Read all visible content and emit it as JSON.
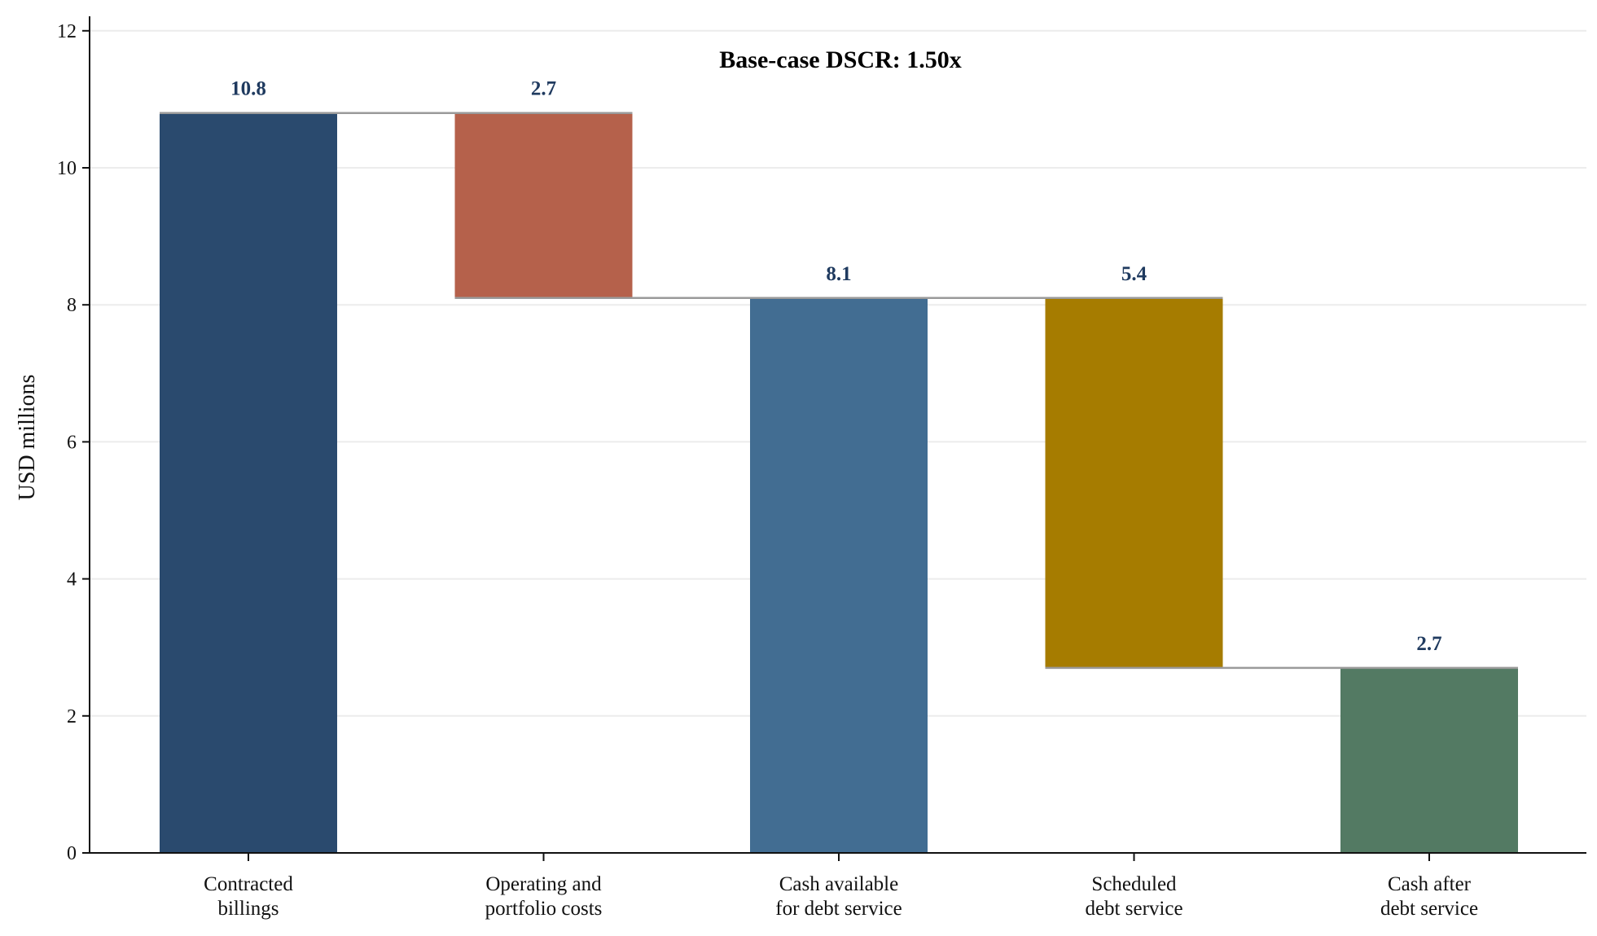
{
  "chart_data": {
    "type": "bar",
    "subtype": "waterfall",
    "title": "",
    "annotation": "Base-case DSCR: 1.50x",
    "xlabel": "",
    "ylabel": "USD millions",
    "ylim": [
      0,
      12.2
    ],
    "yticks": [
      0,
      2,
      4,
      6,
      8,
      10,
      12
    ],
    "grid": "horizontal",
    "legend": "none",
    "categories": [
      [
        "Contracted",
        "billings"
      ],
      [
        "Operating and",
        "portfolio costs"
      ],
      [
        "Cash available",
        "for debt service"
      ],
      [
        "Scheduled",
        "debt service"
      ],
      [
        "Cash after",
        "debt service"
      ]
    ],
    "bars": [
      {
        "kind": "total",
        "bottom": 0,
        "top": 10.8,
        "label": "10.8",
        "color": "#2a4a6e"
      },
      {
        "kind": "decrease",
        "bottom": 8.1,
        "top": 10.8,
        "label": "2.7",
        "color": "#b5614b"
      },
      {
        "kind": "total",
        "bottom": 0,
        "top": 8.1,
        "label": "8.1",
        "color": "#426d92"
      },
      {
        "kind": "decrease",
        "bottom": 2.7,
        "top": 8.1,
        "label": "5.4",
        "color": "#a67c00"
      },
      {
        "kind": "total",
        "bottom": 0,
        "top": 2.7,
        "label": "2.7",
        "color": "#537a63"
      }
    ],
    "connectors": [
      {
        "from": 0,
        "to": 1,
        "y": 10.8
      },
      {
        "from": 1,
        "to": 2,
        "y": 8.1
      },
      {
        "from": 2,
        "to": 3,
        "y": 8.1
      },
      {
        "from": 3,
        "to": 4,
        "y": 2.7
      }
    ],
    "colors": {
      "label_text": "#1f3a5f",
      "connector": "#9a9a9a",
      "grid": "#ececec",
      "axis": "#111111"
    }
  }
}
